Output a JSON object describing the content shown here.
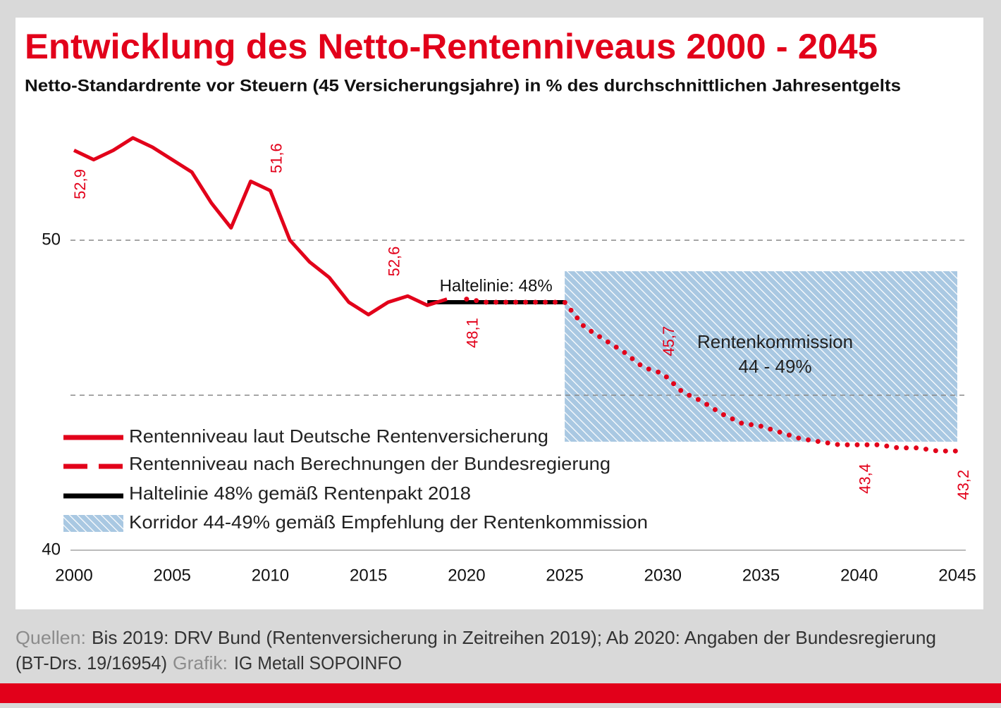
{
  "chart_data": {
    "type": "line",
    "title": "Entwicklung des Netto-Rentenniveaus 2000 - 2045",
    "subtitle": "Netto-Standardrente vor Steuern (45 Versicherungsjahre) in % des durchschnittlichen Jahresentgelts",
    "xlim": [
      2000,
      2045
    ],
    "xticks": [
      2000,
      2005,
      2010,
      2015,
      2020,
      2025,
      2030,
      2035,
      2040,
      2045
    ],
    "ylim": [
      40,
      54
    ],
    "yticks": [
      40,
      50
    ],
    "gridlines": [
      45,
      50
    ],
    "series": [
      {
        "name": "Rentenniveau laut Deutsche Rentenversicherung",
        "color": "#e2001a",
        "style": "solid",
        "x": [
          2000,
          2001,
          2002,
          2003,
          2004,
          2005,
          2006,
          2007,
          2008,
          2009,
          2010,
          2011,
          2012,
          2013,
          2014,
          2015,
          2016,
          2017,
          2018,
          2019
        ],
        "values": [
          52.9,
          52.6,
          52.9,
          53.3,
          53.0,
          52.6,
          52.2,
          51.2,
          50.4,
          51.9,
          51.6,
          50.0,
          49.3,
          48.8,
          48.0,
          47.6,
          48.0,
          48.2,
          47.9,
          48.1
        ],
        "value_labels": [
          "52,9",
          null,
          null,
          null,
          null,
          null,
          null,
          null,
          null,
          null,
          "51,6",
          null,
          null,
          null,
          null,
          null,
          null,
          null,
          null,
          null
        ]
      },
      {
        "name": "Rentenniveau nach Berechnungen der Bundesregierung",
        "color": "#e2001a",
        "style": "dotted",
        "x": [
          2020,
          2021,
          2022,
          2023,
          2024,
          2025,
          2026,
          2027,
          2028,
          2029,
          2030,
          2031,
          2032,
          2033,
          2034,
          2035,
          2036,
          2037,
          2038,
          2039,
          2040,
          2041,
          2042,
          2043,
          2044,
          2045
        ],
        "values": [
          48.1,
          48.0,
          48.0,
          48.0,
          48.0,
          48.0,
          47.2,
          46.8,
          46.4,
          45.9,
          45.7,
          45.1,
          44.8,
          44.4,
          44.1,
          44.0,
          43.8,
          43.6,
          43.5,
          43.4,
          43.4,
          43.4,
          43.3,
          43.3,
          43.2,
          43.2
        ],
        "value_labels": [
          "48,1",
          null,
          null,
          null,
          null,
          null,
          null,
          null,
          null,
          null,
          "45,7",
          null,
          null,
          null,
          null,
          null,
          null,
          null,
          null,
          null,
          "43,4",
          null,
          null,
          null,
          null,
          "43,2"
        ]
      }
    ],
    "haltelinie": {
      "name": "Haltelinie 48% gemäß Rentenpakt 2018",
      "label": "Haltelinie: 48%",
      "value": 48,
      "x": [
        2018,
        2025
      ],
      "color": "#000000"
    },
    "corridor": {
      "name": "Korridor 44-49% gemäß Empfehlung der Rentenkommission",
      "label": [
        "Rentenkommission",
        "44 - 49%"
      ],
      "x": [
        2025,
        2045
      ],
      "y": [
        43.5,
        49
      ],
      "color": "#a9c8e2"
    },
    "annotations": [
      {
        "text": "52,6",
        "x": 2016
      }
    ],
    "footer": {
      "sources_label": "Quellen:",
      "sources": [
        "Bis 2019: DRV Bund (Rentenversicherung in Zeitreihen 2019); Ab 2020: Angaben der Bundesregierung",
        "(BT-Drs. 19/16954)"
      ],
      "credit_label": "Grafik:",
      "credit": "IG Metall SOPOINFO"
    }
  }
}
